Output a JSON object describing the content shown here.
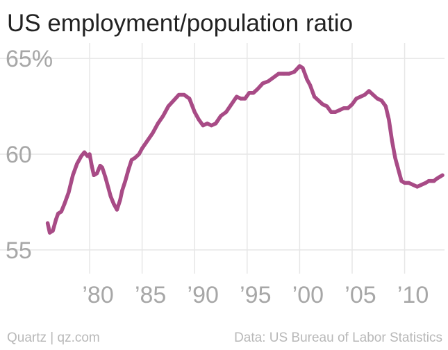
{
  "chart_data": {
    "type": "line",
    "title": "US employment/population ratio",
    "xlabel": "",
    "ylabel": "",
    "ylim": [
      54.2,
      65.8
    ],
    "xlim": [
      1975.3,
      2013.8
    ],
    "grid": true,
    "y_ticks": [
      {
        "value": 65,
        "label": "65%"
      },
      {
        "value": 60,
        "label": "60"
      },
      {
        "value": 55,
        "label": "55"
      }
    ],
    "x_ticks": [
      {
        "value": 1980,
        "label": "’80"
      },
      {
        "value": 1985,
        "label": "’85"
      },
      {
        "value": 1990,
        "label": "’90"
      },
      {
        "value": 1995,
        "label": "’95"
      },
      {
        "value": 2000,
        "label": "’00"
      },
      {
        "value": 2005,
        "label": "’05"
      },
      {
        "value": 2010,
        "label": "’10"
      }
    ],
    "series": [
      {
        "name": "Employment/population ratio",
        "color": "#a84b86",
        "x": [
          1976.0,
          1976.2,
          1976.5,
          1976.8,
          1977.0,
          1977.3,
          1977.6,
          1978.0,
          1978.4,
          1978.8,
          1979.2,
          1979.5,
          1979.8,
          1980.0,
          1980.2,
          1980.4,
          1980.7,
          1981.0,
          1981.2,
          1981.5,
          1981.8,
          1982.0,
          1982.3,
          1982.6,
          1982.9,
          1983.1,
          1983.4,
          1983.7,
          1984.0,
          1984.3,
          1984.7,
          1985.0,
          1985.5,
          1986.0,
          1986.5,
          1987.0,
          1987.5,
          1988.0,
          1988.5,
          1989.0,
          1989.5,
          1990.0,
          1990.4,
          1990.8,
          1991.2,
          1991.6,
          1992.0,
          1992.5,
          1993.0,
          1993.5,
          1994.0,
          1994.4,
          1994.8,
          1995.2,
          1995.6,
          1996.0,
          1996.5,
          1997.0,
          1997.5,
          1998.0,
          1998.5,
          1999.0,
          1999.5,
          2000.0,
          2000.3,
          2000.7,
          2001.0,
          2001.4,
          2001.8,
          2002.2,
          2002.6,
          2003.0,
          2003.4,
          2003.8,
          2004.2,
          2004.6,
          2005.0,
          2005.4,
          2005.8,
          2006.2,
          2006.6,
          2007.0,
          2007.4,
          2007.8,
          2008.2,
          2008.5,
          2008.8,
          2009.1,
          2009.4,
          2009.7,
          2010.0,
          2010.4,
          2010.8,
          2011.2,
          2011.6,
          2012.0,
          2012.3,
          2012.6,
          2012.8,
          2013.0,
          2013.3,
          2013.6
        ],
        "values": [
          56.4,
          55.9,
          56.0,
          56.6,
          56.9,
          57.0,
          57.4,
          58.0,
          58.9,
          59.5,
          59.9,
          60.1,
          59.9,
          60.0,
          59.4,
          58.9,
          59.0,
          59.4,
          59.3,
          58.8,
          58.2,
          57.8,
          57.4,
          57.1,
          57.6,
          58.1,
          58.6,
          59.2,
          59.7,
          59.8,
          60.0,
          60.3,
          60.7,
          61.1,
          61.6,
          62.0,
          62.5,
          62.8,
          63.1,
          63.1,
          62.9,
          62.2,
          61.8,
          61.5,
          61.6,
          61.5,
          61.6,
          62.0,
          62.2,
          62.6,
          63.0,
          62.9,
          62.9,
          63.2,
          63.2,
          63.4,
          63.7,
          63.8,
          64.0,
          64.2,
          64.2,
          64.2,
          64.3,
          64.6,
          64.5,
          63.9,
          63.6,
          63.0,
          62.8,
          62.6,
          62.5,
          62.2,
          62.2,
          62.3,
          62.4,
          62.4,
          62.6,
          62.9,
          63.0,
          63.1,
          63.3,
          63.1,
          62.9,
          62.8,
          62.5,
          61.8,
          60.7,
          59.8,
          59.2,
          58.6,
          58.5,
          58.5,
          58.4,
          58.3,
          58.4,
          58.5,
          58.6,
          58.6,
          58.6,
          58.7,
          58.8,
          58.9
        ]
      }
    ]
  },
  "footer": {
    "left": "Quartz | qz.com",
    "right": "Data: US Bureau of Labor Statistics"
  }
}
